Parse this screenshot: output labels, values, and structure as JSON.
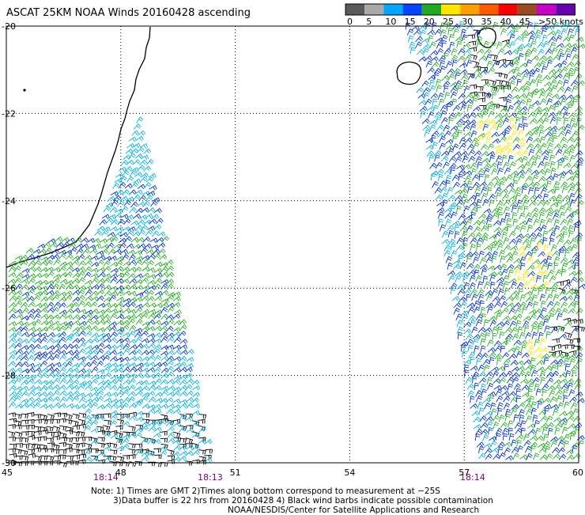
{
  "title": "ASCAT 25KM NOAA Winds 20160428 ascending",
  "legend": {
    "colors": [
      "#5a5a5a",
      "#a9a9a9",
      "#00a6ff",
      "#0044ff",
      "#1faa22",
      "#ffe600",
      "#ff9f00",
      "#ff5a00",
      "#ff0000",
      "#9c4a22",
      "#c800c8",
      "#6a00b0"
    ],
    "labels": [
      "0",
      "5",
      "10",
      "15",
      "20",
      "25",
      "30",
      "35",
      "40",
      "45",
      ">50 knots"
    ]
  },
  "axes": {
    "lon_labels": [
      "45",
      "48",
      "51",
      "54",
      "57",
      "60"
    ],
    "lat_labels": [
      "-20",
      "-22",
      "-24",
      "-26",
      "-28",
      "-30"
    ]
  },
  "pass_times": [
    "18:14",
    "18:13",
    "18:14"
  ],
  "notes": [
    "Note: 1) Times are GMT 2)Times along bottom correspond to measurement at −25S",
    "3)Data buffer is 22 hrs from 20160428 4) Black wind barbs indicate possible contamination",
    "NOAA/NESDIS/Center for Satellite Applications and Research"
  ],
  "wind_colors": {
    "black": "#000000",
    "gray": "#8a8a8a",
    "cyan": "#00b4e6",
    "blue": "#0030d8",
    "green": "#20b020",
    "yellow": "#ffe600"
  }
}
